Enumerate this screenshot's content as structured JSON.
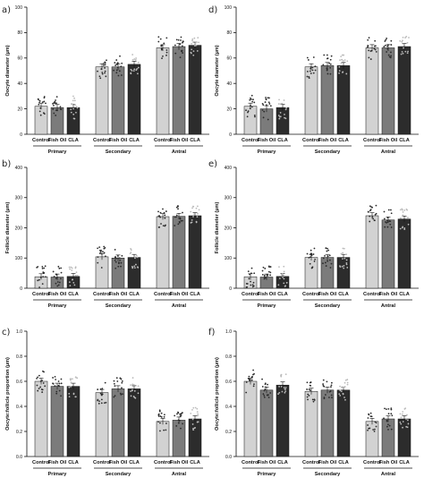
{
  "colors": {
    "Control": "#d2d2d2",
    "Fish Oil": "#7b7b7b",
    "CLA": "#2c2c2c"
  },
  "chart_data": [
    {
      "type": "bar",
      "panel_label": "a)",
      "groups": [
        "Primary",
        "Secondary",
        "Antral"
      ],
      "categories": [
        "Control",
        "Fish Oil",
        "CLA"
      ],
      "series": [
        {
          "group": "Primary",
          "values": [
            22,
            21,
            21
          ]
        },
        {
          "group": "Secondary",
          "values": [
            53,
            53,
            55
          ]
        },
        {
          "group": "Antral",
          "values": [
            68,
            69,
            70
          ]
        }
      ],
      "ylabel": "Oocyte diameter (µm)",
      "ylim": [
        0,
        100
      ],
      "yticks": [
        0,
        20,
        40,
        60,
        80,
        100
      ]
    },
    {
      "type": "bar",
      "panel_label": "d)",
      "groups": [
        "Primary",
        "Secondary",
        "Antral"
      ],
      "categories": [
        "Control",
        "Fish Oil",
        "CLA"
      ],
      "series": [
        {
          "group": "Primary",
          "values": [
            22,
            20,
            21
          ]
        },
        {
          "group": "Secondary",
          "values": [
            53,
            54,
            54
          ]
        },
        {
          "group": "Antral",
          "values": [
            68,
            68,
            69
          ]
        }
      ],
      "ylabel": "Oocyte diameter (µm)",
      "ylim": [
        0,
        100
      ],
      "yticks": [
        0,
        20,
        40,
        60,
        80,
        100
      ]
    },
    {
      "type": "bar",
      "panel_label": "b)",
      "groups": [
        "Primary",
        "Secondary",
        "Antral"
      ],
      "categories": [
        "Control",
        "Fish Oil",
        "CLA"
      ],
      "series": [
        {
          "group": "Primary",
          "values": [
            38,
            37,
            39
          ]
        },
        {
          "group": "Secondary",
          "values": [
            104,
            100,
            102
          ]
        },
        {
          "group": "Antral",
          "values": [
            237,
            238,
            240
          ]
        }
      ],
      "ylabel": "Follicle diameter (µm)",
      "ylim": [
        0,
        400
      ],
      "yticks": [
        0,
        100,
        200,
        300,
        400
      ]
    },
    {
      "type": "bar",
      "panel_label": "e)",
      "groups": [
        "Primary",
        "Secondary",
        "Antral"
      ],
      "categories": [
        "Control",
        "Fish Oil",
        "CLA"
      ],
      "series": [
        {
          "group": "Primary",
          "values": [
            38,
            37,
            39
          ]
        },
        {
          "group": "Secondary",
          "values": [
            102,
            102,
            102
          ]
        },
        {
          "group": "Antral",
          "values": [
            240,
            226,
            229
          ]
        }
      ],
      "ylabel": "Follicle diameter (µm)",
      "ylim": [
        0,
        400
      ],
      "yticks": [
        0,
        100,
        200,
        300,
        400
      ]
    },
    {
      "type": "bar",
      "panel_label": "c)",
      "groups": [
        "Primary",
        "Secondary",
        "Antral"
      ],
      "categories": [
        "Control",
        "Fish Oil",
        "CLA"
      ],
      "series": [
        {
          "group": "Primary",
          "values": [
            0.6,
            0.56,
            0.56
          ]
        },
        {
          "group": "Secondary",
          "values": [
            0.51,
            0.54,
            0.54
          ]
        },
        {
          "group": "Antral",
          "values": [
            0.28,
            0.29,
            0.3
          ]
        }
      ],
      "ylabel": "Oocyte:follicle proportion (µm)",
      "ylim": [
        0,
        1.0
      ],
      "yticks": [
        "0.0",
        "0.2",
        "0.4",
        "0.6",
        "0.8",
        "1.0"
      ]
    },
    {
      "type": "bar",
      "panel_label": "f)",
      "groups": [
        "Primary",
        "Secondary",
        "Antral"
      ],
      "categories": [
        "Control",
        "Fish Oil",
        "CLA"
      ],
      "series": [
        {
          "group": "Primary",
          "values": [
            0.6,
            0.53,
            0.57
          ]
        },
        {
          "group": "Secondary",
          "values": [
            0.52,
            0.53,
            0.53
          ]
        },
        {
          "group": "Antral",
          "values": [
            0.28,
            0.3,
            0.3
          ]
        }
      ],
      "ylabel": "Oocyte:follicle proportion (µm)",
      "ylim": [
        0,
        1.0
      ],
      "yticks": [
        "0.0",
        "0.2",
        "0.4",
        "0.6",
        "0.8",
        "1.0"
      ]
    }
  ]
}
